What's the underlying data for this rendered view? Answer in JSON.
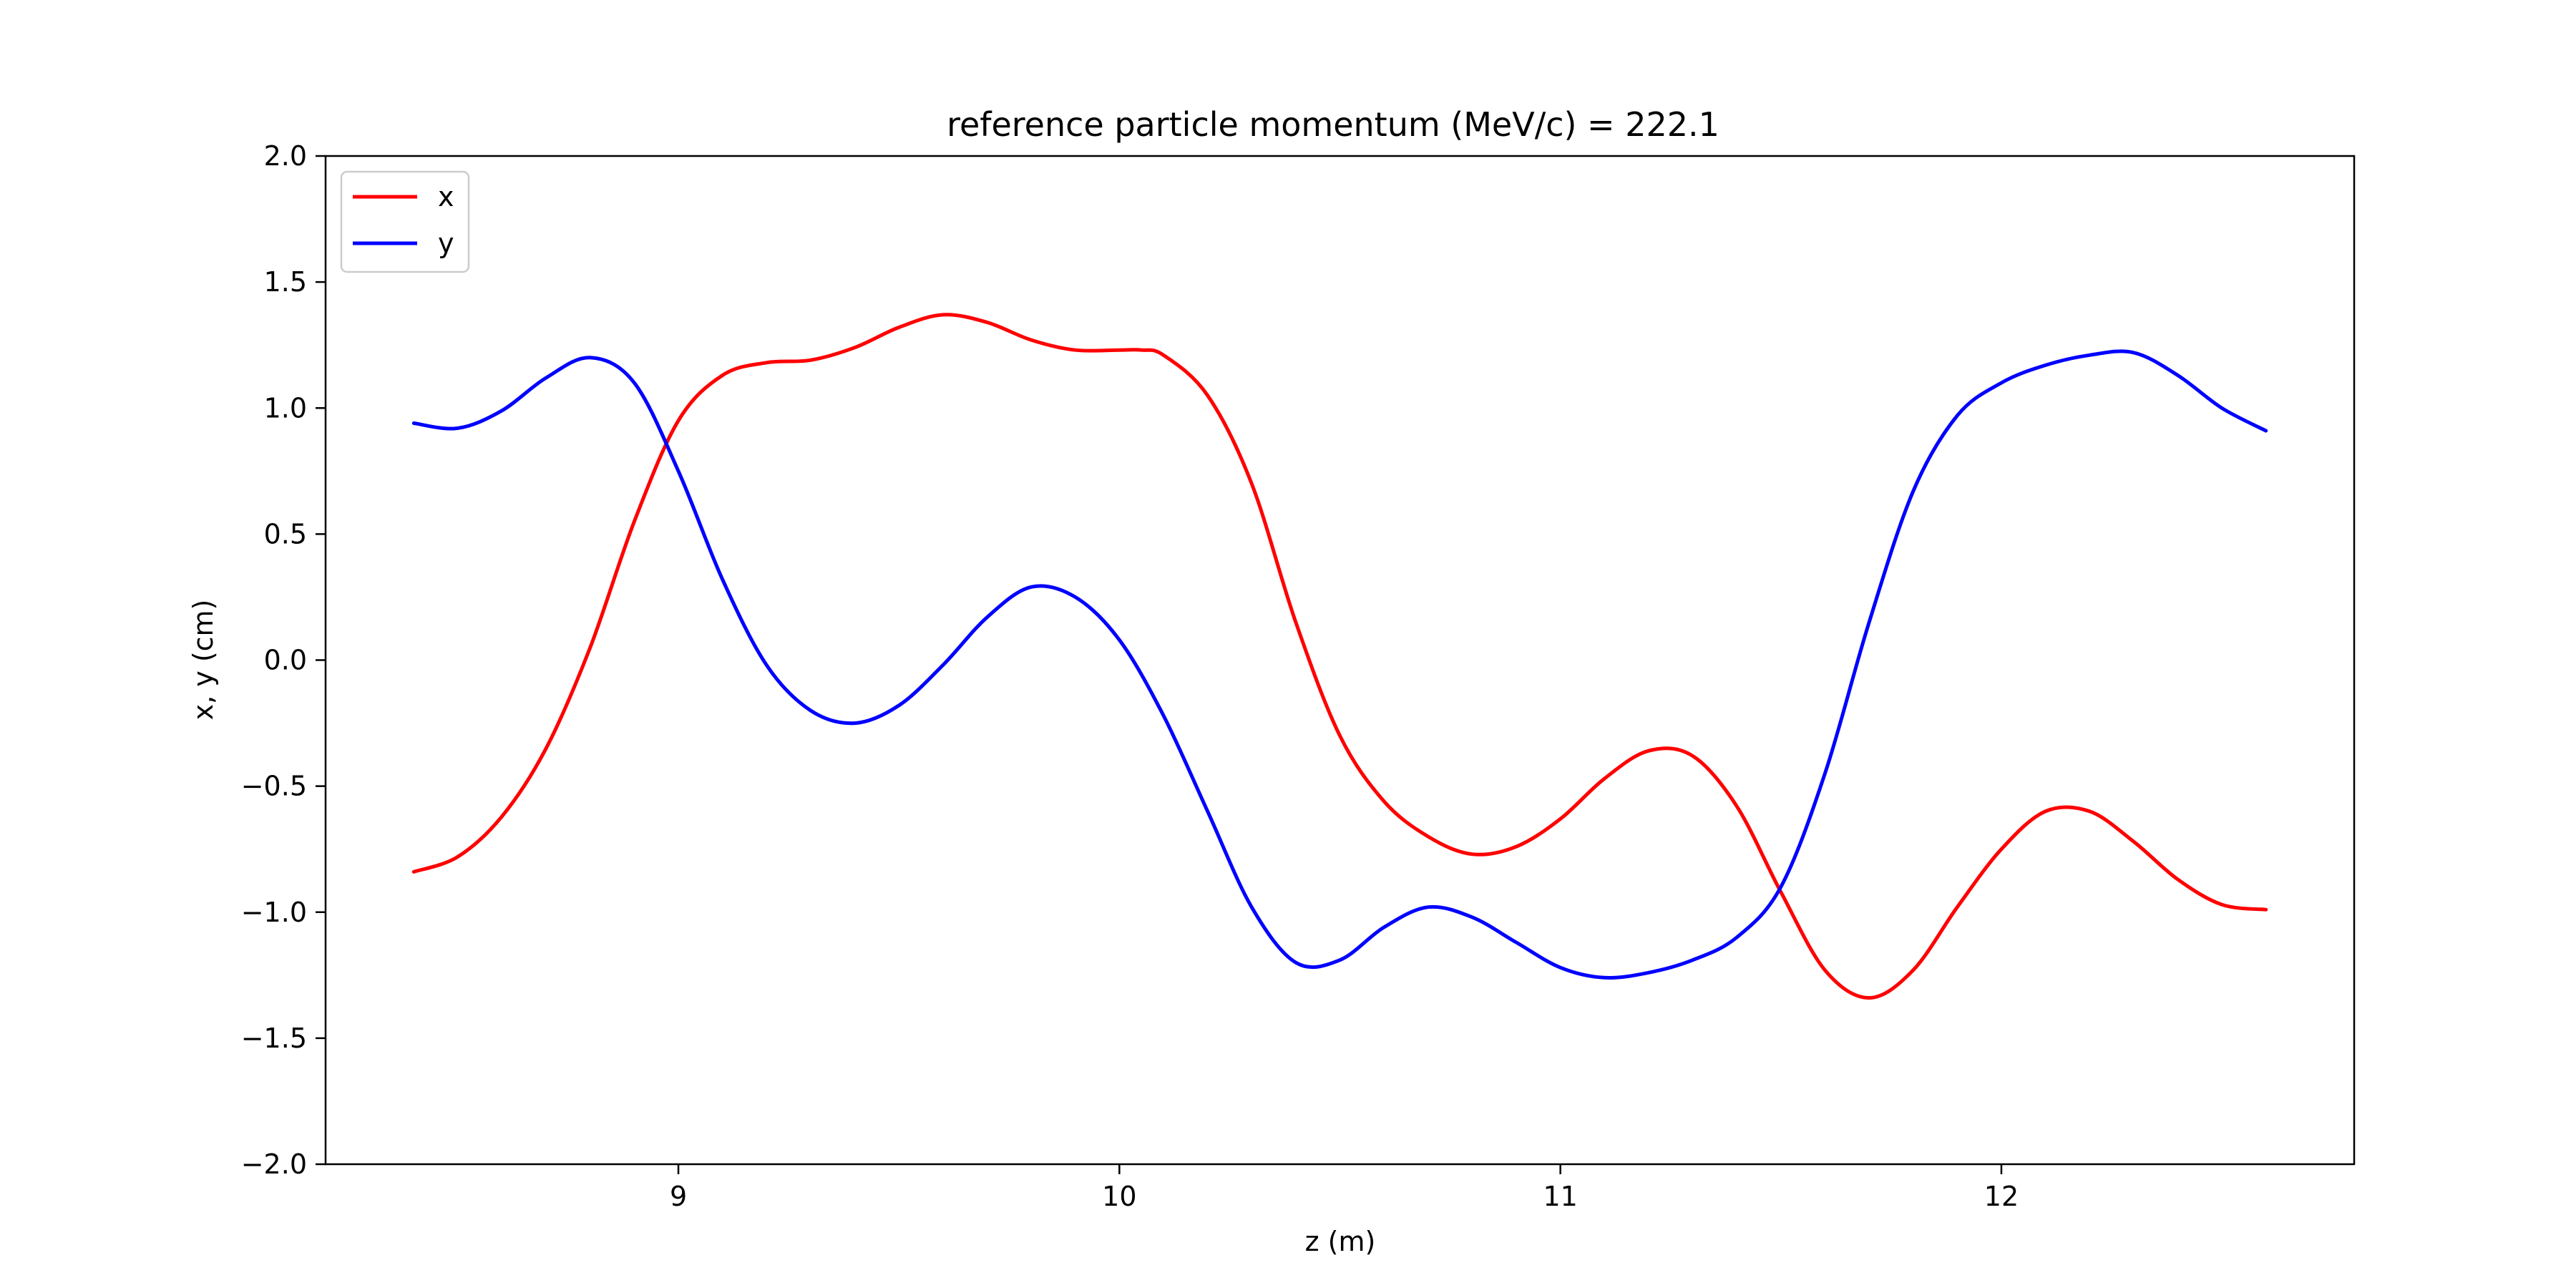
{
  "chart_data": {
    "type": "line",
    "title": "reference particle momentum (MeV/c) = 222.1",
    "xlabel": "z (m)",
    "ylabel": "x, y (cm)",
    "xlim": [
      8.2,
      12.8
    ],
    "ylim": [
      -2.0,
      2.0
    ],
    "xticks": [
      9,
      10,
      11,
      12
    ],
    "xtick_labels": [
      "9",
      "10",
      "11",
      "12"
    ],
    "yticks": [
      -2.0,
      -1.5,
      -1.0,
      -0.5,
      0.0,
      0.5,
      1.0,
      1.5,
      2.0
    ],
    "ytick_labels": [
      "−2.0",
      "−1.5",
      "−1.0",
      "−0.5",
      "0.0",
      "0.5",
      "1.0",
      "1.5",
      "2.0"
    ],
    "grid": false,
    "legend": "upper-left",
    "series": [
      {
        "name": "x",
        "color": "#ff0000",
        "points": [
          [
            8.4,
            -0.84
          ],
          [
            8.5,
            -0.78
          ],
          [
            8.6,
            -0.62
          ],
          [
            8.7,
            -0.35
          ],
          [
            8.8,
            0.05
          ],
          [
            8.9,
            0.55
          ],
          [
            9.0,
            0.95
          ],
          [
            9.1,
            1.13
          ],
          [
            9.2,
            1.18
          ],
          [
            9.3,
            1.19
          ],
          [
            9.4,
            1.24
          ],
          [
            9.5,
            1.32
          ],
          [
            9.6,
            1.37
          ],
          [
            9.7,
            1.34
          ],
          [
            9.8,
            1.27
          ],
          [
            9.9,
            1.23
          ],
          [
            10.0,
            1.23
          ],
          [
            10.05,
            1.23
          ],
          [
            10.1,
            1.21
          ],
          [
            10.2,
            1.05
          ],
          [
            10.3,
            0.7
          ],
          [
            10.4,
            0.15
          ],
          [
            10.5,
            -0.3
          ],
          [
            10.6,
            -0.56
          ],
          [
            10.7,
            -0.7
          ],
          [
            10.8,
            -0.77
          ],
          [
            10.9,
            -0.74
          ],
          [
            11.0,
            -0.63
          ],
          [
            11.1,
            -0.47
          ],
          [
            11.2,
            -0.36
          ],
          [
            11.3,
            -0.38
          ],
          [
            11.4,
            -0.58
          ],
          [
            11.5,
            -0.92
          ],
          [
            11.6,
            -1.23
          ],
          [
            11.7,
            -1.34
          ],
          [
            11.8,
            -1.23
          ],
          [
            11.9,
            -0.98
          ],
          [
            12.0,
            -0.75
          ],
          [
            12.1,
            -0.6
          ],
          [
            12.2,
            -0.6
          ],
          [
            12.3,
            -0.72
          ],
          [
            12.4,
            -0.87
          ],
          [
            12.5,
            -0.97
          ],
          [
            12.6,
            -0.99
          ]
        ]
      },
      {
        "name": "y",
        "color": "#0000ff",
        "points": [
          [
            8.4,
            0.94
          ],
          [
            8.5,
            0.92
          ],
          [
            8.6,
            0.99
          ],
          [
            8.7,
            1.12
          ],
          [
            8.8,
            1.2
          ],
          [
            8.9,
            1.1
          ],
          [
            9.0,
            0.75
          ],
          [
            9.1,
            0.32
          ],
          [
            9.2,
            -0.02
          ],
          [
            9.3,
            -0.2
          ],
          [
            9.4,
            -0.25
          ],
          [
            9.5,
            -0.18
          ],
          [
            9.6,
            -0.02
          ],
          [
            9.7,
            0.17
          ],
          [
            9.8,
            0.29
          ],
          [
            9.9,
            0.25
          ],
          [
            10.0,
            0.08
          ],
          [
            10.1,
            -0.22
          ],
          [
            10.2,
            -0.6
          ],
          [
            10.3,
            -0.98
          ],
          [
            10.4,
            -1.2
          ],
          [
            10.5,
            -1.19
          ],
          [
            10.6,
            -1.06
          ],
          [
            10.7,
            -0.98
          ],
          [
            10.8,
            -1.02
          ],
          [
            10.9,
            -1.12
          ],
          [
            11.0,
            -1.22
          ],
          [
            11.1,
            -1.26
          ],
          [
            11.2,
            -1.24
          ],
          [
            11.3,
            -1.19
          ],
          [
            11.4,
            -1.1
          ],
          [
            11.5,
            -0.9
          ],
          [
            11.6,
            -0.45
          ],
          [
            11.7,
            0.15
          ],
          [
            11.8,
            0.67
          ],
          [
            11.9,
            0.97
          ],
          [
            12.0,
            1.1
          ],
          [
            12.1,
            1.17
          ],
          [
            12.2,
            1.21
          ],
          [
            12.3,
            1.22
          ],
          [
            12.4,
            1.13
          ],
          [
            12.5,
            1.0
          ],
          [
            12.6,
            0.91
          ]
        ]
      }
    ]
  }
}
